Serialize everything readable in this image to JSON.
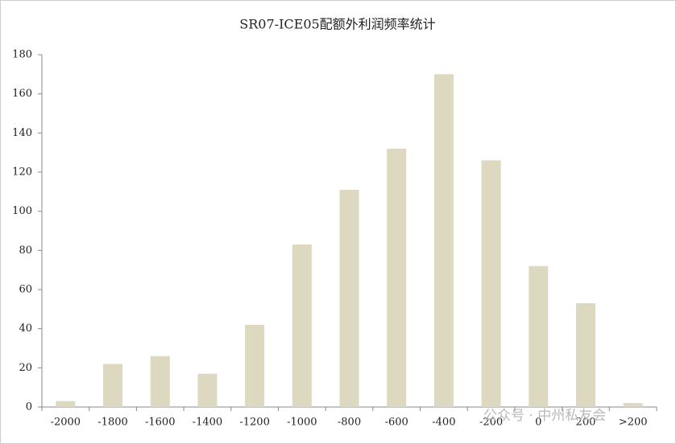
{
  "chart_data": {
    "type": "bar",
    "title": "SR07-ICE05配额外利润频率统计",
    "categories": [
      "-2000",
      "-1800",
      "-1600",
      "-1400",
      "-1200",
      "-1000",
      "-800",
      "-600",
      "-400",
      "-200",
      "0",
      "200",
      ">200"
    ],
    "values": [
      3,
      22,
      26,
      17,
      42,
      83,
      111,
      132,
      170,
      126,
      72,
      53,
      2
    ],
    "color": "#ddd8c0",
    "ylim": [
      0,
      180
    ],
    "yticks": [
      0,
      20,
      40,
      60,
      80,
      100,
      120,
      140,
      160,
      180
    ],
    "grid": false,
    "watermark": "公众号 · 中州私友会"
  }
}
